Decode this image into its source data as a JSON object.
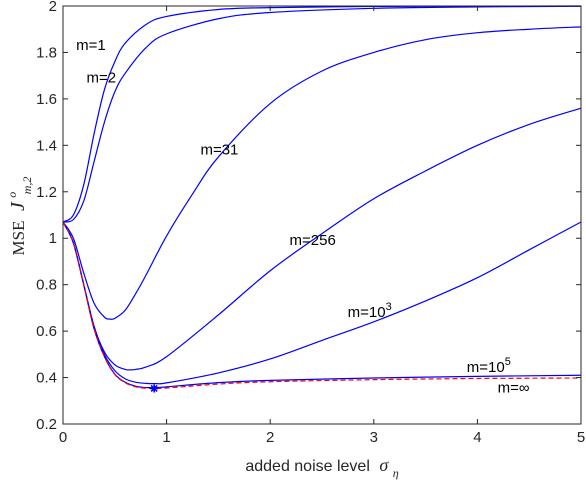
{
  "chart_data": {
    "type": "line",
    "title": "",
    "xlabel": "added noise level",
    "xlabel_symbol": "σ",
    "xlabel_subscript": "η",
    "ylabel": "MSE",
    "ylabel_symbol": "J",
    "ylabel_superscript": "o",
    "ylabel_subscript": "m,2",
    "xlim": [
      0,
      5
    ],
    "ylim": [
      0.2,
      2
    ],
    "xticks": [
      0,
      1,
      2,
      3,
      4,
      5
    ],
    "yticks": [
      0.2,
      0.4,
      0.6,
      0.8,
      1,
      1.2,
      1.4,
      1.6,
      1.8,
      2
    ],
    "xtick_labels": [
      "0",
      "1",
      "2",
      "3",
      "4",
      "5"
    ],
    "ytick_labels": [
      "0.2",
      "0.4",
      "0.6",
      "0.8",
      "1",
      "1.2",
      "1.4",
      "1.6",
      "1.8",
      "2"
    ],
    "grid": false,
    "series": [
      {
        "label": "m=1",
        "color": "#0000ff",
        "style": "solid",
        "x": [
          0,
          0.1,
          0.2,
          0.3,
          0.4,
          0.5,
          0.6,
          0.8,
          1.0,
          1.5,
          2.0,
          3.0,
          4.0,
          5.0
        ],
        "y": [
          1.07,
          1.1,
          1.23,
          1.45,
          1.64,
          1.76,
          1.84,
          1.92,
          1.955,
          1.985,
          1.993,
          1.998,
          1.999,
          2.0
        ]
      },
      {
        "label": "m=2",
        "color": "#0000ff",
        "style": "solid",
        "x": [
          0,
          0.1,
          0.2,
          0.3,
          0.4,
          0.5,
          0.6,
          0.8,
          1.0,
          1.5,
          2.0,
          3.0,
          4.0,
          5.0
        ],
        "y": [
          1.07,
          1.08,
          1.16,
          1.33,
          1.5,
          1.63,
          1.71,
          1.82,
          1.88,
          1.945,
          1.972,
          1.99,
          1.996,
          1.999
        ]
      },
      {
        "label": "m=31",
        "color": "#0000ff",
        "style": "solid",
        "x": [
          0,
          0.1,
          0.2,
          0.3,
          0.4,
          0.45,
          0.5,
          0.6,
          0.7,
          0.8,
          1.0,
          1.25,
          1.5,
          2.0,
          2.5,
          3.0,
          3.5,
          4.0,
          4.5,
          5.0
        ],
        "y": [
          1.07,
          1.0,
          0.85,
          0.72,
          0.66,
          0.652,
          0.655,
          0.69,
          0.76,
          0.84,
          1.01,
          1.19,
          1.35,
          1.58,
          1.72,
          1.8,
          1.855,
          1.885,
          1.9,
          1.91
        ]
      },
      {
        "label": "m=256",
        "color": "#0000ff",
        "style": "solid",
        "x": [
          0,
          0.1,
          0.2,
          0.3,
          0.4,
          0.5,
          0.6,
          0.65,
          0.7,
          0.8,
          1.0,
          1.5,
          2.0,
          2.5,
          3.0,
          3.5,
          4.0,
          4.5,
          5.0
        ],
        "y": [
          1.07,
          0.98,
          0.8,
          0.62,
          0.51,
          0.455,
          0.435,
          0.433,
          0.435,
          0.445,
          0.49,
          0.67,
          0.86,
          1.02,
          1.17,
          1.29,
          1.4,
          1.49,
          1.56
        ]
      },
      {
        "label": "m=10^3",
        "color": "#0000ff",
        "style": "solid",
        "x": [
          0,
          0.1,
          0.2,
          0.3,
          0.4,
          0.5,
          0.6,
          0.7,
          0.8,
          0.9,
          1.0,
          1.5,
          2.0,
          2.5,
          3.0,
          3.5,
          4.0,
          4.5,
          5.0
        ],
        "y": [
          1.07,
          0.98,
          0.8,
          0.62,
          0.5,
          0.43,
          0.395,
          0.38,
          0.375,
          0.374,
          0.377,
          0.42,
          0.48,
          0.56,
          0.64,
          0.73,
          0.83,
          0.95,
          1.07
        ]
      },
      {
        "label": "m=10^5",
        "color": "#0000ff",
        "style": "solid",
        "x": [
          0,
          0.1,
          0.2,
          0.3,
          0.4,
          0.5,
          0.6,
          0.7,
          0.8,
          0.9,
          1.0,
          1.5,
          2.0,
          3.0,
          4.0,
          5.0
        ],
        "y": [
          1.07,
          0.98,
          0.8,
          0.61,
          0.49,
          0.415,
          0.38,
          0.363,
          0.357,
          0.357,
          0.36,
          0.378,
          0.388,
          0.398,
          0.405,
          0.41
        ]
      },
      {
        "label": "m=∞",
        "color": "#ff0000",
        "style": "dashed",
        "x": [
          0,
          0.1,
          0.2,
          0.3,
          0.4,
          0.5,
          0.6,
          0.7,
          0.8,
          0.88,
          1.0,
          1.5,
          2.0,
          3.0,
          4.0,
          5.0
        ],
        "y": [
          1.07,
          0.98,
          0.8,
          0.61,
          0.49,
          0.413,
          0.378,
          0.36,
          0.354,
          0.353,
          0.355,
          0.372,
          0.382,
          0.391,
          0.396,
          0.398
        ]
      }
    ],
    "curve_labels": [
      {
        "base": "m=1",
        "sup": ""
      },
      {
        "base": "m=2",
        "sup": ""
      },
      {
        "base": "m=31",
        "sup": ""
      },
      {
        "base": "m=256",
        "sup": ""
      },
      {
        "base": "m=10",
        "sup": "3"
      },
      {
        "base": "m=10",
        "sup": "5"
      },
      {
        "base": "m=∞",
        "sup": ""
      }
    ],
    "marker": {
      "symbol": "*",
      "color": "#0000ff",
      "x": 0.88,
      "y": 0.353
    },
    "axis_color": "#262626"
  }
}
